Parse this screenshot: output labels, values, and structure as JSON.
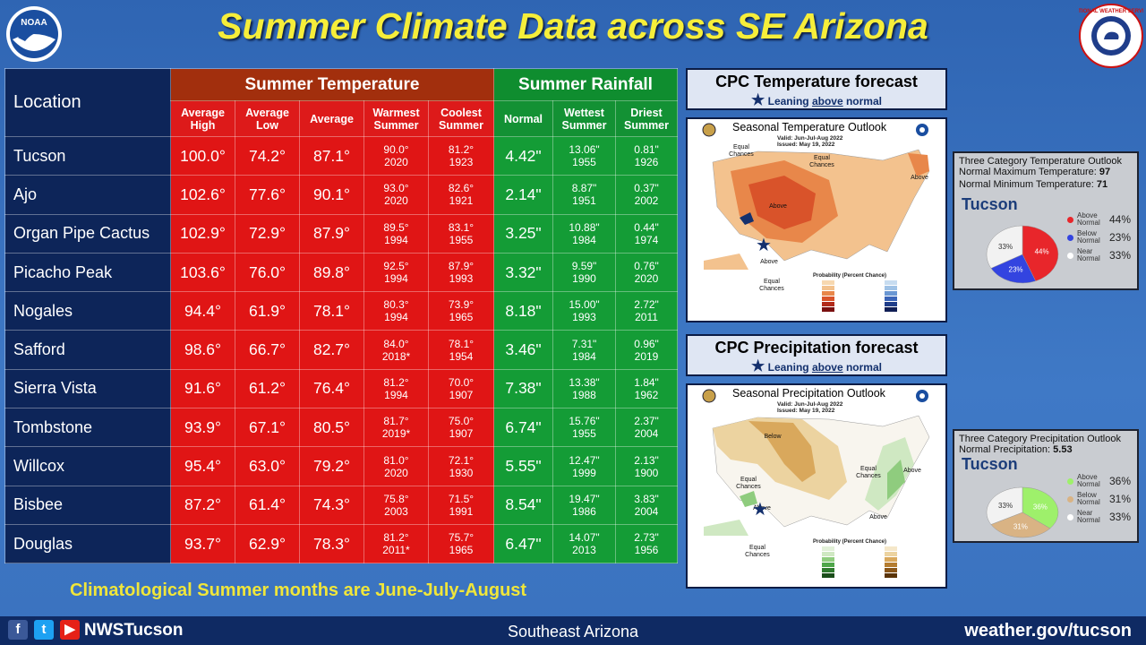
{
  "header": {
    "title": "Summer Climate Data across SE Arizona"
  },
  "logos": {
    "noaa": "NOAA",
    "nws_ring": "NATIONAL WEATHER SERVICE"
  },
  "table": {
    "location_header": "Location",
    "temp_group": "Summer Temperature",
    "rain_group": "Summer Rainfall",
    "temp_cols": [
      {
        "l1": "Average",
        "l2": "High"
      },
      {
        "l1": "Average",
        "l2": "Low"
      },
      {
        "l1": "Average",
        "l2": ""
      },
      {
        "l1": "Warmest",
        "l2": "Summer"
      },
      {
        "l1": "Coolest",
        "l2": "Summer"
      }
    ],
    "rain_cols": [
      {
        "l1": "Normal",
        "l2": ""
      },
      {
        "l1": "Wettest",
        "l2": "Summer"
      },
      {
        "l1": "Driest",
        "l2": "Summer"
      }
    ],
    "rows": [
      {
        "loc": "Tucson",
        "hi": "100.0°",
        "lo": "74.2°",
        "avg": "87.1°",
        "warm": "90.0°",
        "warm_yr": "2020",
        "cool": "81.2°",
        "cool_yr": "1923",
        "normal": "4.42\"",
        "wet": "13.06\"",
        "wet_yr": "1955",
        "dry": "0.81\"",
        "dry_yr": "1926"
      },
      {
        "loc": "Ajo",
        "hi": "102.6°",
        "lo": "77.6°",
        "avg": "90.1°",
        "warm": "93.0°",
        "warm_yr": "2020",
        "cool": "82.6°",
        "cool_yr": "1921",
        "normal": "2.14\"",
        "wet": "8.87\"",
        "wet_yr": "1951",
        "dry": "0.37\"",
        "dry_yr": "2002"
      },
      {
        "loc": "Organ Pipe Cactus",
        "hi": "102.9°",
        "lo": "72.9°",
        "avg": "87.9°",
        "warm": "89.5°",
        "warm_yr": "1994",
        "cool": "83.1°",
        "cool_yr": "1955",
        "normal": "3.25\"",
        "wet": "10.88\"",
        "wet_yr": "1984",
        "dry": "0.44\"",
        "dry_yr": "1974"
      },
      {
        "loc": "Picacho Peak",
        "hi": "103.6°",
        "lo": "76.0°",
        "avg": "89.8°",
        "warm": "92.5°",
        "warm_yr": "1994",
        "cool": "87.9°",
        "cool_yr": "1993",
        "normal": "3.32\"",
        "wet": "9.59\"",
        "wet_yr": "1990",
        "dry": "0.76\"",
        "dry_yr": "2020"
      },
      {
        "loc": "Nogales",
        "hi": "94.4°",
        "lo": "61.9°",
        "avg": "78.1°",
        "warm": "80.3°",
        "warm_yr": "1994",
        "cool": "73.9°",
        "cool_yr": "1965",
        "normal": "8.18\"",
        "wet": "15.00\"",
        "wet_yr": "1993",
        "dry": "2.72\"",
        "dry_yr": "2011"
      },
      {
        "loc": "Safford",
        "hi": "98.6°",
        "lo": "66.7°",
        "avg": "82.7°",
        "warm": "84.0°",
        "warm_yr": "2018*",
        "cool": "78.1°",
        "cool_yr": "1954",
        "normal": "3.46\"",
        "wet": "7.31\"",
        "wet_yr": "1984",
        "dry": "0.96\"",
        "dry_yr": "2019"
      },
      {
        "loc": "Sierra Vista",
        "hi": "91.6°",
        "lo": "61.2°",
        "avg": "76.4°",
        "warm": "81.2°",
        "warm_yr": "1994",
        "cool": "70.0°",
        "cool_yr": "1907",
        "normal": "7.38\"",
        "wet": "13.38\"",
        "wet_yr": "1988",
        "dry": "1.84\"",
        "dry_yr": "1962"
      },
      {
        "loc": "Tombstone",
        "hi": "93.9°",
        "lo": "67.1°",
        "avg": "80.5°",
        "warm": "81.7°",
        "warm_yr": "2019*",
        "cool": "75.0°",
        "cool_yr": "1907",
        "normal": "6.74\"",
        "wet": "15.76\"",
        "wet_yr": "1955",
        "dry": "2.37\"",
        "dry_yr": "2004"
      },
      {
        "loc": "Willcox",
        "hi": "95.4°",
        "lo": "63.0°",
        "avg": "79.2°",
        "warm": "81.0°",
        "warm_yr": "2020",
        "cool": "72.1°",
        "cool_yr": "1930",
        "normal": "5.55\"",
        "wet": "12.47\"",
        "wet_yr": "1999",
        "dry": "2.13\"",
        "dry_yr": "1900"
      },
      {
        "loc": "Bisbee",
        "hi": "87.2°",
        "lo": "61.4°",
        "avg": "74.3°",
        "warm": "75.8°",
        "warm_yr": "2003",
        "cool": "71.5°",
        "cool_yr": "1991",
        "normal": "8.54\"",
        "wet": "19.47\"",
        "wet_yr": "1986",
        "dry": "3.83\"",
        "dry_yr": "2004"
      },
      {
        "loc": "Douglas",
        "hi": "93.7°",
        "lo": "62.9°",
        "avg": "78.3°",
        "warm": "81.2°",
        "warm_yr": "2011*",
        "cool": "75.7°",
        "cool_yr": "1965",
        "normal": "6.47\"",
        "wet": "14.07\"",
        "wet_yr": "2013",
        "dry": "2.73\"",
        "dry_yr": "1956"
      }
    ]
  },
  "temp_forecast": {
    "heading": "CPC Temperature forecast",
    "sub_pre": "Leaning ",
    "sub_u": "above",
    "sub_post": " normal",
    "map_title": "Seasonal Temperature Outlook",
    "valid": "Valid:  Jun-Jul-Aug 2022",
    "issued": "Issued:  May 19, 2022",
    "labels": {
      "eq1": "Equal Chances",
      "eq2": "Equal Chances",
      "above1": "Above",
      "above2": "Above",
      "above3": "Above",
      "eq3": "Equal Chances"
    },
    "legend_title": "Probability (Percent Chance)",
    "info_title": "Three Category Temperature Outlook",
    "info_max_label": "Normal Maximum Temperature:",
    "info_max": "97",
    "info_min_label": "Normal Minimum Temperature:",
    "info_min": "71",
    "city": "Tucson",
    "pie": [
      {
        "label": "Above Normal",
        "value": 44,
        "text": "44%",
        "color": "#e8262b"
      },
      {
        "label": "Below Normal",
        "value": 23,
        "text": "23%",
        "color": "#3344e0"
      },
      {
        "label": "Near Normal",
        "value": 33,
        "text": "33%",
        "color": "#f2f2f2"
      }
    ]
  },
  "precip_forecast": {
    "heading": "CPC Precipitation forecast",
    "sub_pre": "Leaning ",
    "sub_u": "above",
    "sub_post": " normal",
    "map_title": "Seasonal Precipitation Outlook",
    "valid": "Valid:  Jun-Jul-Aug 2022",
    "issued": "Issued:  May 19, 2022",
    "labels": {
      "below": "Below",
      "eq1": "Equal Chances",
      "eq2": "Equal Chances",
      "above1": "Above",
      "above2": "Above",
      "above3": "Above",
      "eq3": "Equal Chances"
    },
    "legend_title": "Probability (Percent Chance)",
    "info_title": "Three Category Precipitation Outlook",
    "info_norm_label": "Normal Precipitation:",
    "info_norm": "5.53",
    "city": "Tucson",
    "pie": [
      {
        "label": "Above Normal",
        "value": 36,
        "text": "36%",
        "color": "#9ef06b"
      },
      {
        "label": "Below Normal",
        "value": 31,
        "text": "31%",
        "color": "#d9b384"
      },
      {
        "label": "Near Normal",
        "value": 33,
        "text": "33%",
        "color": "#f2f2f2"
      }
    ]
  },
  "footer": {
    "note": "Climatological Summer months are June-July-August",
    "handle": "NWSTucson",
    "region": "Southeast Arizona",
    "url": "weather.gov/tucson",
    "social_icons": [
      "facebook-icon",
      "twitter-icon",
      "youtube-icon"
    ]
  }
}
